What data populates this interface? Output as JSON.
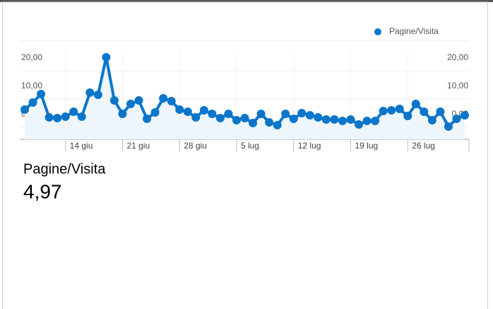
{
  "chart_data": {
    "type": "line",
    "categories": [
      null,
      null,
      null,
      null,
      null,
      "14 giu",
      null,
      null,
      null,
      null,
      null,
      null,
      "21 giu",
      null,
      null,
      null,
      null,
      null,
      null,
      "28 giu",
      null,
      null,
      null,
      null,
      null,
      null,
      "5 lug",
      null,
      null,
      null,
      null,
      null,
      null,
      "12 lug",
      null,
      null,
      null,
      null,
      null,
      null,
      "19 lug",
      null,
      null,
      null,
      null,
      null,
      null,
      "26 lug",
      null,
      null,
      null,
      null,
      null,
      null,
      null
    ],
    "series": [
      {
        "name": "Pagine/Visita",
        "color": "#0b76c9",
        "values": [
          6.25,
          8.75,
          11.75,
          3.5,
          3.25,
          3.75,
          5.5,
          3.75,
          12.25,
          11.5,
          24.75,
          9.5,
          4.75,
          8.25,
          9.5,
          3,
          5.25,
          10.25,
          9.25,
          6.25,
          5.5,
          3.5,
          6,
          4.75,
          3.25,
          4.75,
          2.5,
          3.25,
          1.5,
          4.75,
          1.75,
          0.75,
          4.75,
          3,
          5,
          4.25,
          3.5,
          2.75,
          2.75,
          2.25,
          2.75,
          1,
          2.25,
          2.25,
          5.75,
          6,
          6.5,
          4,
          8.25,
          5.5,
          2.5,
          5.5,
          0.25,
          3,
          4.25
        ]
      }
    ],
    "ylim": [
      0,
      25
    ],
    "yticks": [
      {
        "value": 0,
        "label": "0,00"
      },
      {
        "value": 10,
        "label": "10,00"
      },
      {
        "value": 20,
        "label": "20,00"
      }
    ],
    "grid": true,
    "legend": "top-right"
  },
  "summary": {
    "label": "Pagine/Visita",
    "value": "4,97"
  }
}
